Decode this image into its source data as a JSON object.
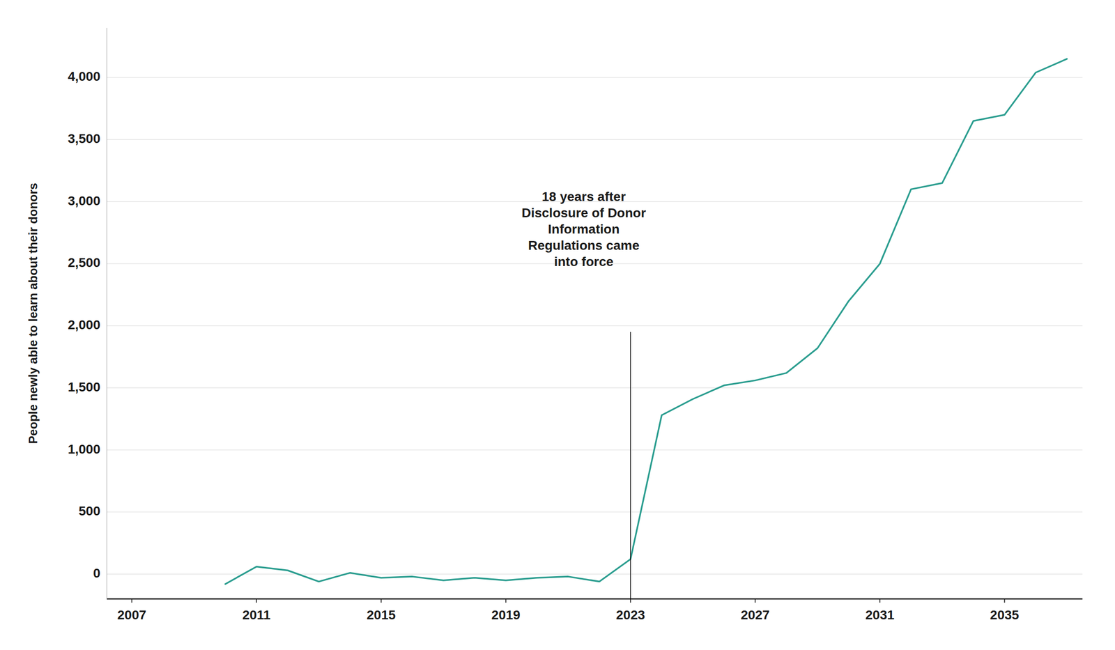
{
  "chart_data": {
    "type": "line",
    "y_label": "People newly able to learn about their donors",
    "color": "#2a9d8f",
    "grid": true,
    "annotation": {
      "text": "18 years after\nDisclosure of Donor\nInformation\nRegulations came\ninto force",
      "x": 2021.5,
      "y": 3100
    },
    "vline": {
      "x": 2023,
      "y1": -200,
      "y2": 1950
    },
    "xlim": [
      2006.2,
      2037.5
    ],
    "ylim": [
      -200,
      4400
    ],
    "xticks": [
      2007,
      2011,
      2015,
      2019,
      2023,
      2027,
      2031,
      2035
    ],
    "yticks": [
      0,
      500,
      {
        "value": 1000,
        "label": "1,000"
      },
      {
        "value": 1500,
        "label": "1,500"
      },
      {
        "value": 2000,
        "label": "2,000"
      },
      {
        "value": 2500,
        "label": "2,500"
      },
      {
        "value": 3000,
        "label": "3,000"
      },
      {
        "value": 3500,
        "label": "3,500"
      },
      {
        "value": 4000,
        "label": "4,000"
      }
    ],
    "x": [
      2010,
      2011,
      2012,
      2013,
      2014,
      2015,
      2016,
      2017,
      2018,
      2019,
      2020,
      2021,
      2022,
      2023,
      2024,
      2025,
      2026,
      2027,
      2028,
      2029,
      2030,
      2031,
      2032,
      2033,
      2034,
      2035,
      2036,
      2037
    ],
    "values": [
      -80,
      60,
      30,
      -60,
      10,
      -30,
      -20,
      -50,
      -30,
      -50,
      -30,
      -20,
      -60,
      120,
      1280,
      1410,
      1520,
      1560,
      1620,
      1820,
      2200,
      2500,
      3100,
      3150,
      3650,
      3700,
      4040,
      4150
    ]
  }
}
